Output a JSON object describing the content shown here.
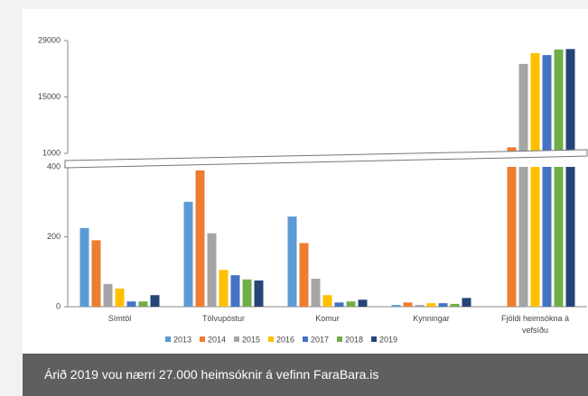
{
  "chart_data": {
    "type": "bar",
    "categories": [
      "Símtöl",
      "Tölvupóstur",
      "Komur",
      "Kynningar",
      "Fjöldi heimsókna á vefsíðu"
    ],
    "series": [
      {
        "name": "2013",
        "color": "#5b9bd5",
        "values": [
          225,
          300,
          258,
          5,
          null
        ]
      },
      {
        "name": "2014",
        "color": "#ed7d31",
        "values": [
          190,
          390,
          182,
          12,
          2500
        ]
      },
      {
        "name": "2015",
        "color": "#a5a5a5",
        "values": [
          65,
          210,
          80,
          5,
          23200
        ]
      },
      {
        "name": "2016",
        "color": "#ffc000",
        "values": [
          52,
          105,
          33,
          10,
          25900
        ]
      },
      {
        "name": "2017",
        "color": "#4472c4",
        "values": [
          15,
          90,
          12,
          10,
          25400
        ]
      },
      {
        "name": "2018",
        "color": "#70ad47",
        "values": [
          15,
          78,
          15,
          8,
          26800
        ]
      },
      {
        "name": "2019",
        "color": "#264478",
        "values": [
          33,
          75,
          20,
          25,
          26900
        ]
      }
    ],
    "ylim": [
      0,
      400
    ],
    "yticks": [
      0,
      200,
      400
    ],
    "y2lim": [
      1000,
      29000
    ],
    "y2ticks": [
      1000,
      15000,
      29000
    ],
    "legend": "bottom",
    "caption": "Árið 2019 vou nærri 27.000 heimsóknir á vefinn FaraBara.is"
  }
}
